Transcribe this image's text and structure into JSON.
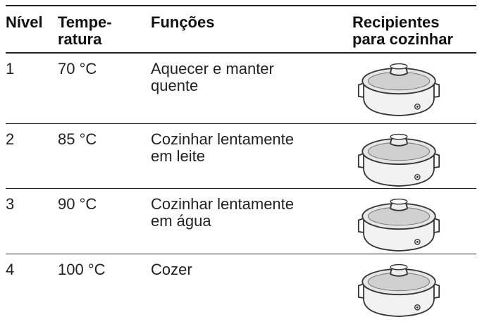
{
  "table": {
    "headers": [
      "Nível",
      "Tempe-\nratura",
      "Funções",
      "Recipientes\npara cozinhar"
    ],
    "rows": [
      [
        "1",
        "70 °C",
        "Aquecer e manter\nquente"
      ],
      [
        "2",
        "85 °C",
        "Cozinhar lentamente\nem leite"
      ],
      [
        "3",
        "90 °C",
        "Cozinhar lentamente\nem água"
      ],
      [
        "4",
        "100 °C",
        "Cozer"
      ]
    ]
  }
}
